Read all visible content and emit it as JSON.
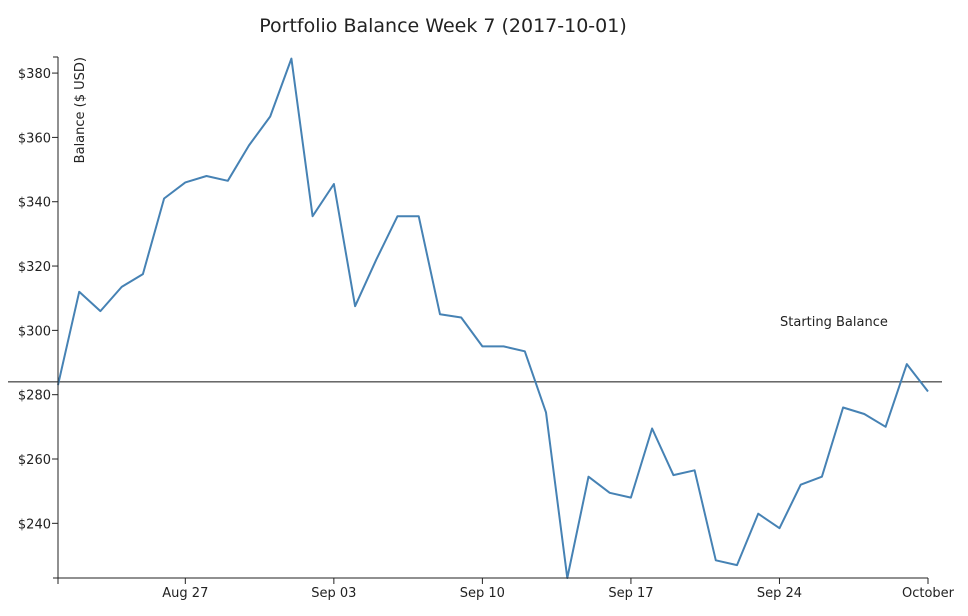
{
  "chart_data": {
    "type": "line",
    "title": "Portfolio Balance Week 7 (2017-10-01)",
    "xlabel": "",
    "ylabel": "Balance ($ USD)",
    "x_ticks": [
      "Aug 27",
      "Sep 03",
      "Sep 10",
      "Sep 17",
      "Sep 24",
      "October"
    ],
    "y_ticks": [
      "$240",
      "$260",
      "$280",
      "$300",
      "$320",
      "$340",
      "$360",
      "$380"
    ],
    "ylim": [
      223,
      385
    ],
    "xlim": [
      "2017-08-21",
      "2017-10-01"
    ],
    "grid": false,
    "series": [
      {
        "color": "#4682b4",
        "x": [
          "2017-08-21",
          "2017-08-22",
          "2017-08-23",
          "2017-08-24",
          "2017-08-25",
          "2017-08-26",
          "2017-08-27",
          "2017-08-28",
          "2017-08-29",
          "2017-08-30",
          "2017-08-31",
          "2017-09-01",
          "2017-09-02",
          "2017-09-03",
          "2017-09-04",
          "2017-09-05",
          "2017-09-06",
          "2017-09-07",
          "2017-09-08",
          "2017-09-09",
          "2017-09-10",
          "2017-09-11",
          "2017-09-12",
          "2017-09-13",
          "2017-09-14",
          "2017-09-15",
          "2017-09-16",
          "2017-09-17",
          "2017-09-18",
          "2017-09-19",
          "2017-09-20",
          "2017-09-21",
          "2017-09-22",
          "2017-09-23",
          "2017-09-24",
          "2017-09-25",
          "2017-09-26",
          "2017-09-27",
          "2017-09-28",
          "2017-09-29",
          "2017-09-30",
          "2017-10-01"
        ],
        "y": [
          283,
          312,
          306,
          313.5,
          317.5,
          341,
          346,
          348,
          346.5,
          357.5,
          366.5,
          384.5,
          335.5,
          345.5,
          307.5,
          322,
          335.5,
          335.5,
          305,
          304,
          295,
          295,
          293.5,
          274.5,
          223,
          254.5,
          249.5,
          248,
          269.5,
          255,
          256.5,
          228.5,
          227,
          243,
          238.5,
          252,
          254.5,
          276,
          274,
          270,
          289.5,
          281
        ]
      }
    ],
    "reference_line": {
      "y": 284,
      "label": "Starting Balance",
      "color": "#555555"
    }
  }
}
